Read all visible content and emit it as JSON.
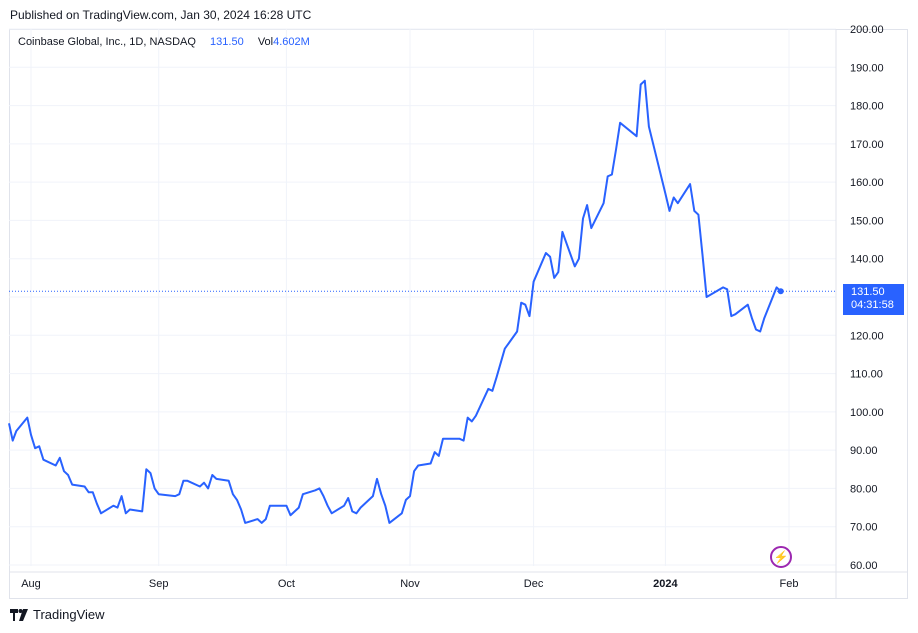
{
  "header": {
    "published": "Published on TradingView.com, Jan 30, 2024 16:28 UTC"
  },
  "legend": {
    "symbol": "Coinbase Global, Inc., 1D, NASDAQ",
    "last": "131.50",
    "vol_label": "Vol",
    "vol_value": "4.602M"
  },
  "price_tag": {
    "price": "131.50",
    "countdown": "04:31:58"
  },
  "footer": {
    "brand": "TradingView"
  },
  "colors": {
    "line": "#2962ff",
    "grid": "#f0f3fa",
    "axis_text": "#131722",
    "event_icon": "#9c27b0"
  },
  "icons": {
    "event": "lightning-bolt-icon",
    "brand": "tradingview-logo-icon"
  },
  "chart_data": {
    "type": "line",
    "title": "",
    "xlabel": "",
    "ylabel": "",
    "ylim": [
      60,
      200
    ],
    "y_ticks": [
      "60.00",
      "70.00",
      "80.00",
      "90.00",
      "100.00",
      "110.00",
      "120.00",
      "130.00",
      "140.00",
      "150.00",
      "160.00",
      "170.00",
      "180.00",
      "190.00",
      "200.00"
    ],
    "x_ticks": [
      {
        "label": "Aug",
        "date": "2023-08-01"
      },
      {
        "label": "Sep",
        "date": "2023-09-01"
      },
      {
        "label": "Oct",
        "date": "2023-10-02"
      },
      {
        "label": "Nov",
        "date": "2023-11-01"
      },
      {
        "label": "Dec",
        "date": "2023-12-01"
      },
      {
        "label": "2024",
        "date": "2024-01-02"
      },
      {
        "label": "Feb",
        "date": "2024-02-01"
      }
    ],
    "grid": true,
    "last_price": 131.5,
    "series": [
      {
        "points": [
          [
            "2023-07-26",
            97.0
          ],
          [
            "2023-07-27",
            92.5
          ],
          [
            "2023-07-28",
            95.0
          ],
          [
            "2023-07-31",
            98.5
          ],
          [
            "2023-08-01",
            94.0
          ],
          [
            "2023-08-02",
            90.5
          ],
          [
            "2023-08-03",
            91.0
          ],
          [
            "2023-08-04",
            87.5
          ],
          [
            "2023-08-07",
            86.0
          ],
          [
            "2023-08-08",
            88.0
          ],
          [
            "2023-08-09",
            84.5
          ],
          [
            "2023-08-10",
            83.5
          ],
          [
            "2023-08-11",
            81.0
          ],
          [
            "2023-08-14",
            80.5
          ],
          [
            "2023-08-15",
            79.0
          ],
          [
            "2023-08-16",
            79.0
          ],
          [
            "2023-08-17",
            76.0
          ],
          [
            "2023-08-18",
            73.5
          ],
          [
            "2023-08-21",
            75.5
          ],
          [
            "2023-08-22",
            75.0
          ],
          [
            "2023-08-23",
            78.0
          ],
          [
            "2023-08-24",
            73.5
          ],
          [
            "2023-08-25",
            74.5
          ],
          [
            "2023-08-28",
            74.0
          ],
          [
            "2023-08-29",
            85.0
          ],
          [
            "2023-08-30",
            84.0
          ],
          [
            "2023-08-31",
            80.0
          ],
          [
            "2023-09-01",
            78.5
          ],
          [
            "2023-09-05",
            78.0
          ],
          [
            "2023-09-06",
            78.5
          ],
          [
            "2023-09-07",
            82.0
          ],
          [
            "2023-09-08",
            82.0
          ],
          [
            "2023-09-11",
            80.5
          ],
          [
            "2023-09-12",
            81.5
          ],
          [
            "2023-09-13",
            80.0
          ],
          [
            "2023-09-14",
            83.5
          ],
          [
            "2023-09-15",
            82.5
          ],
          [
            "2023-09-18",
            82.0
          ],
          [
            "2023-09-19",
            78.5
          ],
          [
            "2023-09-20",
            77.0
          ],
          [
            "2023-09-21",
            74.5
          ],
          [
            "2023-09-22",
            71.0
          ],
          [
            "2023-09-25",
            72.0
          ],
          [
            "2023-09-26",
            71.0
          ],
          [
            "2023-09-27",
            72.0
          ],
          [
            "2023-09-28",
            75.5
          ],
          [
            "2023-09-29",
            75.5
          ],
          [
            "2023-10-02",
            75.5
          ],
          [
            "2023-10-03",
            73.0
          ],
          [
            "2023-10-04",
            74.0
          ],
          [
            "2023-10-05",
            75.0
          ],
          [
            "2023-10-06",
            78.5
          ],
          [
            "2023-10-09",
            79.5
          ],
          [
            "2023-10-10",
            80.0
          ],
          [
            "2023-10-11",
            78.0
          ],
          [
            "2023-10-12",
            75.5
          ],
          [
            "2023-10-13",
            73.5
          ],
          [
            "2023-10-16",
            75.5
          ],
          [
            "2023-10-17",
            77.5
          ],
          [
            "2023-10-18",
            74.0
          ],
          [
            "2023-10-19",
            73.5
          ],
          [
            "2023-10-20",
            75.0
          ],
          [
            "2023-10-23",
            78.0
          ],
          [
            "2023-10-24",
            82.5
          ],
          [
            "2023-10-25",
            78.5
          ],
          [
            "2023-10-26",
            75.5
          ],
          [
            "2023-10-27",
            71.0
          ],
          [
            "2023-10-30",
            73.5
          ],
          [
            "2023-10-31",
            77.0
          ],
          [
            "2023-11-01",
            78.0
          ],
          [
            "2023-11-02",
            84.5
          ],
          [
            "2023-11-03",
            86.0
          ],
          [
            "2023-11-06",
            86.5
          ],
          [
            "2023-11-07",
            89.5
          ],
          [
            "2023-11-08",
            88.5
          ],
          [
            "2023-11-09",
            93.0
          ],
          [
            "2023-11-10",
            93.0
          ],
          [
            "2023-11-13",
            93.0
          ],
          [
            "2023-11-14",
            92.5
          ],
          [
            "2023-11-15",
            98.5
          ],
          [
            "2023-11-16",
            97.5
          ],
          [
            "2023-11-17",
            99.0
          ],
          [
            "2023-11-20",
            106.0
          ],
          [
            "2023-11-21",
            105.5
          ],
          [
            "2023-11-22",
            109.0
          ],
          [
            "2023-11-24",
            116.5
          ],
          [
            "2023-11-27",
            121.0
          ],
          [
            "2023-11-28",
            128.5
          ],
          [
            "2023-11-29",
            128.0
          ],
          [
            "2023-11-30",
            125.0
          ],
          [
            "2023-12-01",
            134.0
          ],
          [
            "2023-12-04",
            141.5
          ],
          [
            "2023-12-05",
            140.5
          ],
          [
            "2023-12-06",
            135.0
          ],
          [
            "2023-12-07",
            136.5
          ],
          [
            "2023-12-08",
            147.0
          ],
          [
            "2023-12-11",
            138.0
          ],
          [
            "2023-12-12",
            140.0
          ],
          [
            "2023-12-13",
            150.5
          ],
          [
            "2023-12-14",
            154.0
          ],
          [
            "2023-12-15",
            148.0
          ],
          [
            "2023-12-18",
            154.5
          ],
          [
            "2023-12-19",
            161.5
          ],
          [
            "2023-12-20",
            162.0
          ],
          [
            "2023-12-21",
            168.5
          ],
          [
            "2023-12-22",
            175.5
          ],
          [
            "2023-12-26",
            172.0
          ],
          [
            "2023-12-27",
            185.5
          ],
          [
            "2023-12-28",
            186.5
          ],
          [
            "2023-12-29",
            174.5
          ],
          [
            "2024-01-02",
            157.0
          ],
          [
            "2024-01-03",
            152.5
          ],
          [
            "2024-01-04",
            156.0
          ],
          [
            "2024-01-05",
            154.5
          ],
          [
            "2024-01-08",
            159.5
          ],
          [
            "2024-01-09",
            152.5
          ],
          [
            "2024-01-10",
            151.5
          ],
          [
            "2024-01-11",
            141.0
          ],
          [
            "2024-01-12",
            130.0
          ],
          [
            "2024-01-16",
            132.5
          ],
          [
            "2024-01-17",
            132.0
          ],
          [
            "2024-01-18",
            125.0
          ],
          [
            "2024-01-19",
            125.5
          ],
          [
            "2024-01-22",
            128.0
          ],
          [
            "2024-01-23",
            124.5
          ],
          [
            "2024-01-24",
            121.5
          ],
          [
            "2024-01-25",
            121.0
          ],
          [
            "2024-01-26",
            124.5
          ],
          [
            "2024-01-29",
            132.5
          ],
          [
            "2024-01-30",
            131.5
          ]
        ]
      }
    ]
  }
}
